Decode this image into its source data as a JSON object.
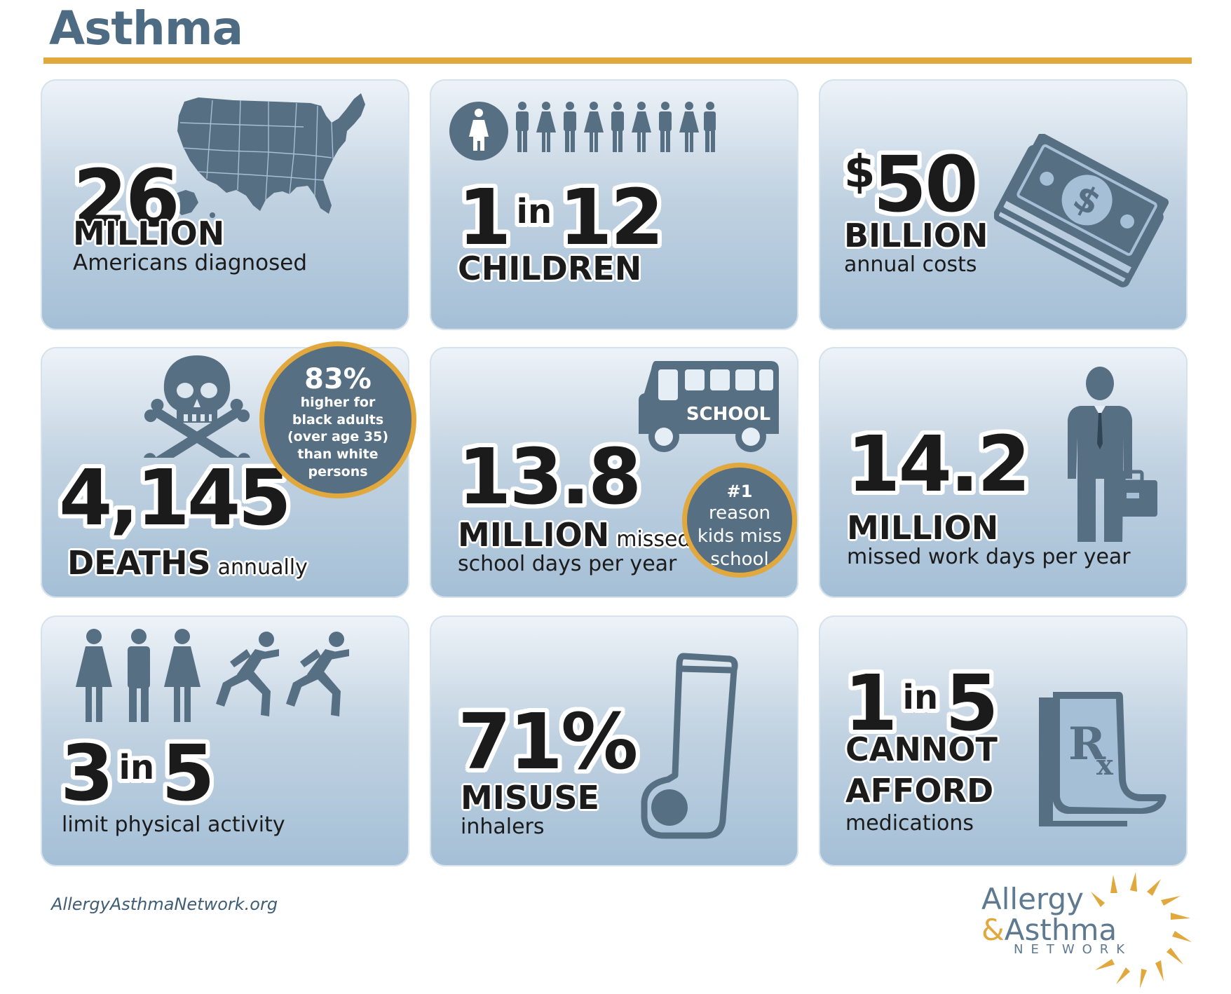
{
  "title": "Asthma",
  "colors": {
    "accent": "#e1a83e",
    "icon": "#566f83",
    "title": "#4d6b82"
  },
  "cards": {
    "americans": {
      "number": "26",
      "caption": "MILLION",
      "subtitle": "Americans diagnosed",
      "icon": "usa-map-icon"
    },
    "children": {
      "left": "1",
      "in": "in",
      "right": "12",
      "caption": "CHILDREN",
      "icon": "people-row-icon"
    },
    "costs": {
      "dollar": "$",
      "number": "50",
      "caption": "BILLION",
      "subtitle": "annual costs",
      "icon": "money-stack-icon"
    },
    "deaths": {
      "number": "4,145",
      "caption": "DEATHS",
      "suffix": "annually",
      "icon": "skull-crossbones-icon",
      "badge": {
        "value": "83%",
        "lines": [
          "higher for",
          "black adults",
          "(over age 35)",
          "than white",
          "persons"
        ]
      }
    },
    "school": {
      "number": "13.8",
      "caption": "MILLION",
      "suffix": "missed",
      "subtitle": "school days per year",
      "icon": "school-bus-icon",
      "bus_label": "SCHOOL",
      "badge": {
        "value": "#1",
        "lines": [
          "reason",
          "kids miss",
          "school"
        ]
      }
    },
    "work": {
      "number": "14.2",
      "caption": "MILLION",
      "subtitle": "missed work days per year",
      "icon": "businessman-icon"
    },
    "activity": {
      "left": "3",
      "in": "in",
      "right": "5",
      "subtitle": "limit physical activity",
      "icon": "people-running-icon"
    },
    "inhalers": {
      "number": "71%",
      "caption": "MISUSE",
      "subtitle": "inhalers",
      "icon": "inhaler-icon"
    },
    "medications": {
      "left": "1",
      "in": "in",
      "right": "5",
      "caption1": "CANNOT",
      "caption2": "AFFORD",
      "subtitle": "medications",
      "icon": "prescription-icon"
    }
  },
  "footer": {
    "url": "AllergyAsthmaNetwork.org",
    "logo": {
      "line1": "Allergy",
      "amp": "&",
      "line2": "Asthma",
      "line3": "NETWORK"
    }
  }
}
